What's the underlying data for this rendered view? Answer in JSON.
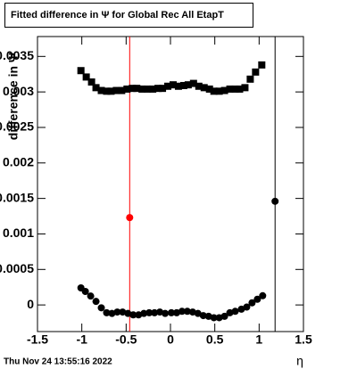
{
  "chart_data": {
    "type": "scatter",
    "title": "Fitted difference in  Ψ  for Global Rec All EtapT",
    "ylabel": "difference in Ψ",
    "xlabel": "η",
    "timestamp": "Thu Nov 24 13:55:16 2022",
    "xlim": [
      -1.5,
      1.5
    ],
    "ylim": [
      -0.000375,
      0.00378
    ],
    "xticks": [
      -1.5,
      -1,
      -0.5,
      0,
      0.5,
      1,
      1.5
    ],
    "yticks": [
      0,
      0.0005,
      0.001,
      0.0015,
      0.002,
      0.0025,
      0.003,
      0.0035
    ],
    "series": [
      {
        "color": "#000000",
        "marker": "square",
        "x": [
          -1.01,
          -0.95,
          -0.89,
          -0.84,
          -0.78,
          -0.72,
          -0.67,
          -0.61,
          -0.55,
          -0.49,
          -0.43,
          -0.38,
          -0.32,
          -0.26,
          -0.2,
          -0.14,
          -0.09,
          -0.03,
          0.03,
          0.09,
          0.15,
          0.2,
          0.26,
          0.32,
          0.38,
          0.44,
          0.49,
          0.55,
          0.61,
          0.67,
          0.73,
          0.78,
          0.84,
          0.9,
          0.96,
          1.03
        ],
        "values": [
          0.0033,
          0.00321,
          0.00314,
          0.00306,
          0.00302,
          0.00301,
          0.00301,
          0.00302,
          0.00302,
          0.00304,
          0.00305,
          0.00305,
          0.00304,
          0.00304,
          0.00304,
          0.00305,
          0.00305,
          0.00308,
          0.0031,
          0.00308,
          0.00309,
          0.0031,
          0.00312,
          0.00308,
          0.00306,
          0.00304,
          0.00301,
          0.00301,
          0.00302,
          0.00304,
          0.00304,
          0.00304,
          0.00306,
          0.00318,
          0.00328,
          0.00338
        ]
      },
      {
        "color": "#000000",
        "marker": "circle",
        "x": [
          -1.01,
          -0.96,
          -0.9,
          -0.84,
          -0.78,
          -0.72,
          -0.66,
          -0.6,
          -0.54,
          -0.48,
          -0.42,
          -0.36,
          -0.3,
          -0.24,
          -0.18,
          -0.12,
          -0.06,
          0.01,
          0.07,
          0.13,
          0.19,
          0.25,
          0.31,
          0.37,
          0.43,
          0.49,
          0.55,
          0.61,
          0.67,
          0.73,
          0.8,
          0.86,
          0.92,
          0.98,
          1.04
        ],
        "values": [
          0.00024,
          0.00019,
          0.000125,
          5e-05,
          -4e-05,
          -0.00011,
          -0.00012,
          -0.0001,
          -0.0001,
          -0.00012,
          -0.00014,
          -0.00014,
          -0.00012,
          -0.00011,
          -0.00011,
          -0.0001,
          -0.00012,
          -0.00011,
          -0.00011,
          -9e-05,
          -9e-05,
          -0.0001,
          -0.00012,
          -0.00015,
          -0.00016,
          -0.00018,
          -0.00018,
          -0.00016,
          -0.00011,
          -9e-05,
          -6e-05,
          -3e-05,
          3e-05,
          8e-05,
          0.00013
        ]
      },
      {
        "color": "#ff0000",
        "marker": "circle",
        "x": [
          -0.46
        ],
        "values": [
          0.00123
        ]
      },
      {
        "color": "#000000",
        "marker": "circle",
        "x": [
          1.18
        ],
        "values": [
          0.00146
        ]
      }
    ],
    "vlines": [
      {
        "x": -0.46,
        "color": "#ff0000"
      },
      {
        "x": 1.18,
        "color": "#000000"
      }
    ]
  }
}
